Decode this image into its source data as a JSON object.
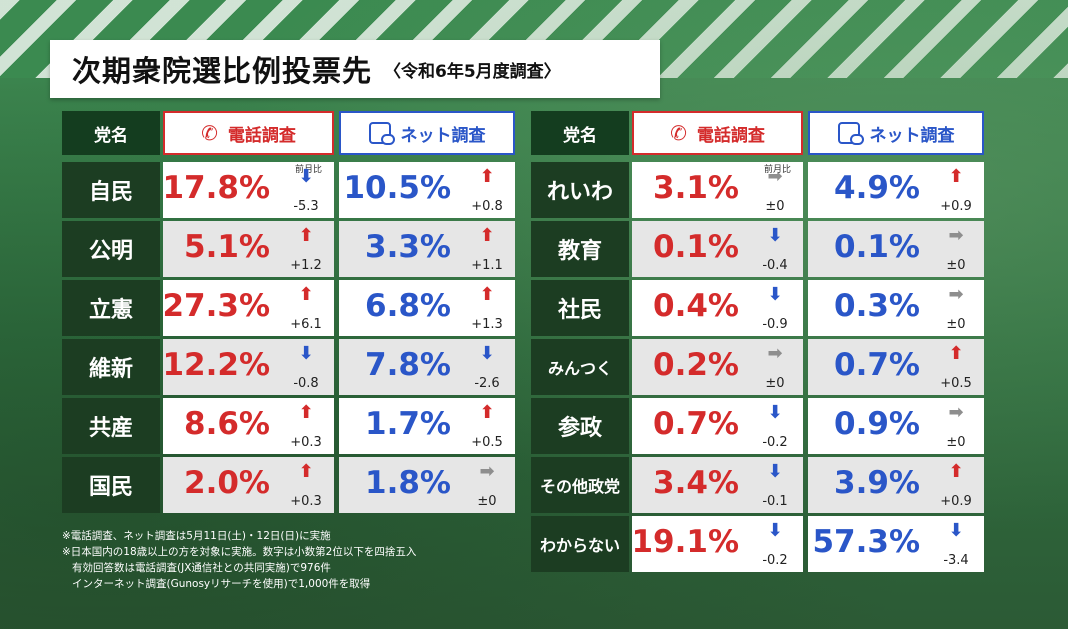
{
  "title": "次期衆院選比例投票先",
  "subtitle": "〈令和6年5月度調査〉",
  "headers": {
    "party": "党名",
    "phone": "電話調査",
    "net": "ネット調査"
  },
  "colors": {
    "phone": "#d42b2b",
    "net": "#2a56c8",
    "party_bg": "#1c3d22",
    "up": "#d42b2b",
    "down": "#2a56c8",
    "flat": "#8e8e8e"
  },
  "icons": {
    "phone": "phone-icon",
    "net": "smartphone-chat-icon"
  },
  "prev_month_label": "前月比",
  "left": {
    "rows": [
      {
        "party": "自民",
        "phone_pct": "17.8%",
        "phone_change": "-5.3",
        "phone_dir": "down",
        "net_pct": "10.5%",
        "net_change": "+0.8",
        "net_dir": "up"
      },
      {
        "party": "公明",
        "phone_pct": "5.1%",
        "phone_change": "+1.2",
        "phone_dir": "up",
        "net_pct": "3.3%",
        "net_change": "+1.1",
        "net_dir": "up"
      },
      {
        "party": "立憲",
        "phone_pct": "27.3%",
        "phone_change": "+6.1",
        "phone_dir": "up",
        "net_pct": "6.8%",
        "net_change": "+1.3",
        "net_dir": "up"
      },
      {
        "party": "維新",
        "phone_pct": "12.2%",
        "phone_change": "-0.8",
        "phone_dir": "down",
        "net_pct": "7.8%",
        "net_change": "-2.6",
        "net_dir": "down"
      },
      {
        "party": "共産",
        "phone_pct": "8.6%",
        "phone_change": "+0.3",
        "phone_dir": "up",
        "net_pct": "1.7%",
        "net_change": "+0.5",
        "net_dir": "up"
      },
      {
        "party": "国民",
        "phone_pct": "2.0%",
        "phone_change": "+0.3",
        "phone_dir": "up",
        "net_pct": "1.8%",
        "net_change": "±0",
        "net_dir": "flat"
      }
    ]
  },
  "right": {
    "rows": [
      {
        "party": "れいわ",
        "phone_pct": "3.1%",
        "phone_change": "±0",
        "phone_dir": "flat",
        "net_pct": "4.9%",
        "net_change": "+0.9",
        "net_dir": "up"
      },
      {
        "party": "教育",
        "phone_pct": "0.1%",
        "phone_change": "-0.4",
        "phone_dir": "down",
        "net_pct": "0.1%",
        "net_change": "±0",
        "net_dir": "flat"
      },
      {
        "party": "社民",
        "phone_pct": "0.4%",
        "phone_change": "-0.9",
        "phone_dir": "down",
        "net_pct": "0.3%",
        "net_change": "±0",
        "net_dir": "flat"
      },
      {
        "party": "みんつく",
        "phone_pct": "0.2%",
        "phone_change": "±0",
        "phone_dir": "flat",
        "net_pct": "0.7%",
        "net_change": "+0.5",
        "net_dir": "up"
      },
      {
        "party": "参政",
        "phone_pct": "0.7%",
        "phone_change": "-0.2",
        "phone_dir": "down",
        "net_pct": "0.9%",
        "net_change": "±0",
        "net_dir": "flat"
      },
      {
        "party": "その他政党",
        "phone_pct": "3.4%",
        "phone_change": "-0.1",
        "phone_dir": "down",
        "net_pct": "3.9%",
        "net_change": "+0.9",
        "net_dir": "up"
      },
      {
        "party": "わからない",
        "phone_pct": "19.1%",
        "phone_change": "-0.2",
        "phone_dir": "down",
        "net_pct": "57.3%",
        "net_change": "-3.4",
        "net_dir": "down"
      }
    ]
  },
  "notes": [
    "※電話調査、ネット調査は5月11日(土)・12日(日)に実施",
    "※日本国内の18歳以上の方を対象に実施。数字は小数第2位以下を四捨五入",
    "有効回答数は電話調査(JX通信社との共同実施)で976件",
    "インターネット調査(Gunosyリサーチを使用)で1,000件を取得"
  ],
  "chart_data": {
    "type": "table",
    "title": "次期衆院選比例投票先",
    "subtitle": "〈令和6年5月度調査〉",
    "columns": [
      "党名",
      "電話調査",
      "前月比",
      "ネット調査",
      "前月比"
    ],
    "series": [
      {
        "name": "電話調査",
        "unit": "%",
        "values": {
          "自民": 17.8,
          "公明": 5.1,
          "立憲": 27.3,
          "維新": 12.2,
          "共産": 8.6,
          "国民": 2.0,
          "れいわ": 3.1,
          "教育": 0.1,
          "社民": 0.4,
          "みんつく": 0.2,
          "参政": 0.7,
          "その他政党": 3.4,
          "わからない": 19.1
        },
        "change": {
          "自民": -5.3,
          "公明": 1.2,
          "立憲": 6.1,
          "維新": -0.8,
          "共産": 0.3,
          "国民": 0.3,
          "れいわ": 0,
          "教育": -0.4,
          "社民": -0.9,
          "みんつく": 0,
          "参政": -0.2,
          "その他政党": -0.1,
          "わからない": -0.2
        }
      },
      {
        "name": "ネット調査",
        "unit": "%",
        "values": {
          "自民": 10.5,
          "公明": 3.3,
          "立憲": 6.8,
          "維新": 7.8,
          "共産": 1.7,
          "国民": 1.8,
          "れいわ": 4.9,
          "教育": 0.1,
          "社民": 0.3,
          "みんつく": 0.7,
          "参政": 0.9,
          "その他政党": 3.9,
          "わからない": 57.3
        },
        "change": {
          "自民": 0.8,
          "公明": 1.1,
          "立憲": 1.3,
          "維新": -2.6,
          "共産": 0.5,
          "国民": 0,
          "れいわ": 0.9,
          "教育": 0,
          "社民": 0,
          "みんつく": 0.5,
          "参政": 0,
          "その他政党": 0.9,
          "わからない": -3.4
        }
      }
    ]
  }
}
